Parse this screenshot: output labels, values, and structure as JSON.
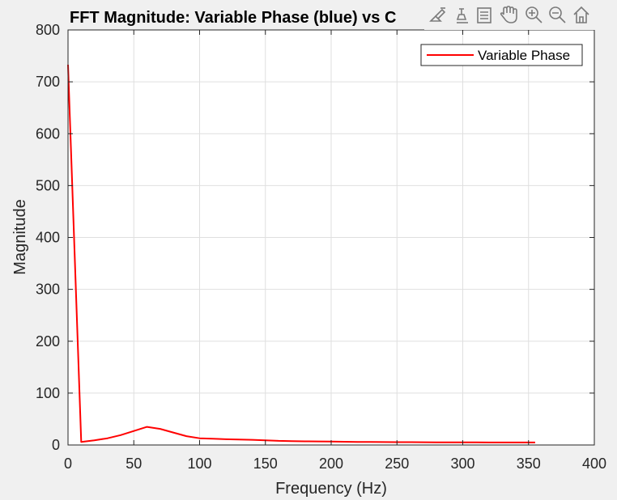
{
  "chart_data": {
    "type": "line",
    "title": "FFT Magnitude: Variable Phase (blue) vs C",
    "xlabel": "Frequency (Hz)",
    "ylabel": "Magnitude",
    "xlim": [
      0,
      400
    ],
    "ylim": [
      0,
      800
    ],
    "xticks": [
      0,
      50,
      100,
      150,
      200,
      250,
      300,
      350,
      400
    ],
    "yticks": [
      0,
      100,
      200,
      300,
      400,
      500,
      600,
      700,
      800
    ],
    "grid": true,
    "legend_position": "top-right",
    "series": [
      {
        "name": "Variable Phase",
        "color": "#ff0000",
        "x": [
          0,
          10,
          20,
          30,
          40,
          50,
          60,
          70,
          80,
          90,
          100,
          110,
          120,
          130,
          140,
          150,
          160,
          170,
          180,
          190,
          200,
          210,
          220,
          230,
          240,
          250,
          260,
          270,
          280,
          290,
          300,
          310,
          320,
          330,
          340,
          350,
          355
        ],
        "y": [
          733,
          6,
          9,
          13,
          19,
          27,
          35,
          31,
          24,
          17,
          13,
          12,
          11,
          10.5,
          10,
          9,
          8,
          7.5,
          7,
          6.8,
          6.5,
          6.2,
          6,
          5.8,
          5.6,
          5.5,
          5.4,
          5.3,
          5.2,
          5.1,
          5,
          5,
          4.9,
          4.9,
          4.8,
          4.8,
          4.8
        ]
      }
    ]
  },
  "toolbar": {
    "icons": [
      "brush-icon",
      "data-tips-icon",
      "legend-icon",
      "pan-icon",
      "zoom-in-icon",
      "zoom-out-icon",
      "home-icon"
    ]
  }
}
